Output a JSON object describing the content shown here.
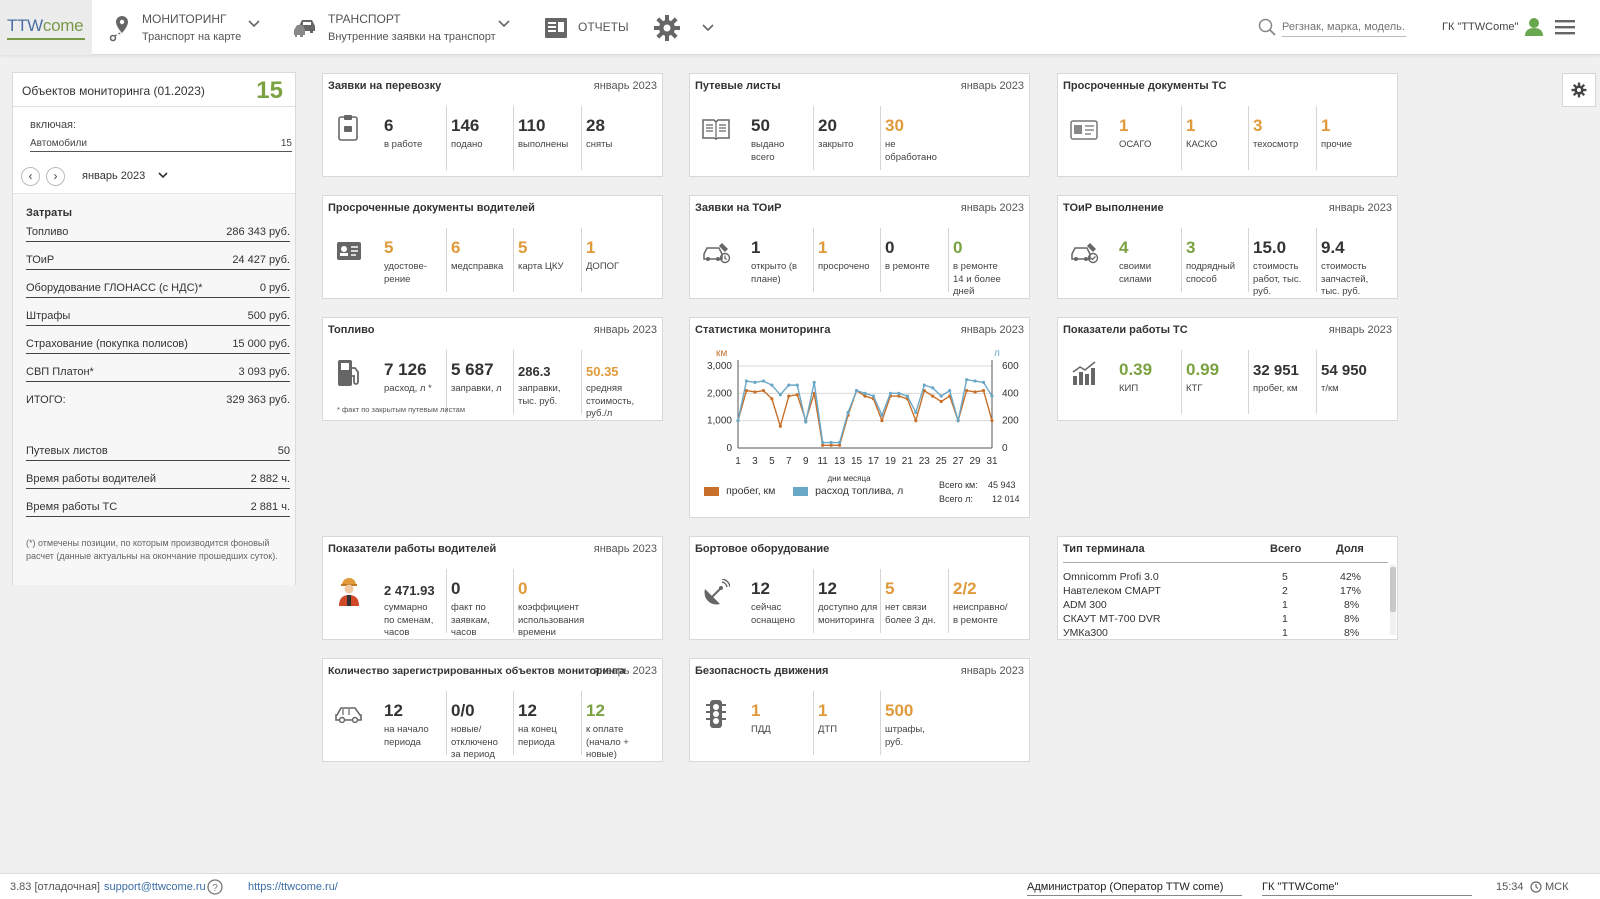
{
  "header": {
    "logo_tt": "TTW",
    "logo_rest": "come",
    "nav": [
      {
        "title": "МОНИТОРИНГ",
        "sub": "Транспорт на карте"
      },
      {
        "title": "ТРАНСПОРТ",
        "sub": "Внутренние заявки на транспорт"
      },
      {
        "title": "ОТЧЕТЫ",
        "sub": ""
      }
    ],
    "search_placeholder": "Регзнак, марка, модель...",
    "org": "ГК \"TTWCome\""
  },
  "left": {
    "title": "Объектов мониторинга (01.2023)",
    "count": "15",
    "including": "включая:",
    "auto_label": "Автомобили",
    "auto_value": "15",
    "period": "январь 2023",
    "costs_title": "Затраты",
    "costs": [
      {
        "label": "Топливо",
        "value": "286 343 руб."
      },
      {
        "label": "ТОиР",
        "value": "24 427 руб."
      },
      {
        "label": "Оборудование ГЛОНАСС (с НДС)*",
        "value": "0 руб."
      },
      {
        "label": "Штрафы",
        "value": "500 руб."
      },
      {
        "label": "Страхование (покупка полисов)",
        "value": "15 000 руб."
      },
      {
        "label": "СВП Платон*",
        "value": "3 093 руб."
      },
      {
        "label": "ИТОГО:",
        "value": "329 363 руб."
      }
    ],
    "extra": [
      {
        "label": "Путевых листов",
        "value": "50"
      },
      {
        "label": "Время работы водителей",
        "value": "2 882 ч."
      },
      {
        "label": "Время работы ТС",
        "value": "2 881 ч."
      }
    ],
    "note": "(*) отмечены позиции, по которым производится фоновый расчет (данные актуальны на окончание прошедших суток)."
  },
  "cards": {
    "c1": {
      "title": "Заявки на перевозку",
      "date": "январь 2023",
      "m": [
        {
          "v": "6",
          "l": "в работе"
        },
        {
          "v": "146",
          "l": "подано"
        },
        {
          "v": "110",
          "l": "выполнены"
        },
        {
          "v": "28",
          "l": "сняты"
        }
      ]
    },
    "c2": {
      "title": "Путевые листы",
      "date": "январь 2023",
      "m": [
        {
          "v": "50",
          "l": "выдано всего"
        },
        {
          "v": "20",
          "l": "закрыто"
        },
        {
          "v": "30",
          "l": "не обработано"
        }
      ]
    },
    "c3": {
      "title": "Просроченные документы ТС",
      "date": "",
      "m": [
        {
          "v": "1",
          "l": "ОСАГО"
        },
        {
          "v": "1",
          "l": "КАСКО"
        },
        {
          "v": "3",
          "l": "техосмотр"
        },
        {
          "v": "1",
          "l": "прочие"
        }
      ]
    },
    "c4": {
      "title": "Просроченные документы водителей",
      "date": "",
      "m": [
        {
          "v": "5",
          "l": "удостове-рение"
        },
        {
          "v": "6",
          "l": "медсправка"
        },
        {
          "v": "5",
          "l": "карта ЦКУ"
        },
        {
          "v": "1",
          "l": "ДОПОГ"
        }
      ]
    },
    "c5": {
      "title": "Заявки на ТОиР",
      "date": "январь 2023",
      "m": [
        {
          "v": "1",
          "l": "открыто (в плане)"
        },
        {
          "v": "1",
          "l": "просрочено"
        },
        {
          "v": "0",
          "l": "в ремонте"
        },
        {
          "v": "0",
          "l": "в ремонте 14 и более дней"
        }
      ]
    },
    "c6": {
      "title": "ТОиР выполнение",
      "date": "январь 2023",
      "m": [
        {
          "v": "4",
          "l": "своими силами"
        },
        {
          "v": "3",
          "l": "подрядный способ"
        },
        {
          "v": "15.0",
          "l": "стоимость работ, тыс. руб."
        },
        {
          "v": "9.4",
          "l": "стоимость запчастей, тыс. руб."
        }
      ]
    },
    "c7": {
      "title": "Топливо",
      "date": "январь 2023",
      "m": [
        {
          "v": "7 126",
          "l": "расход, л *"
        },
        {
          "v": "5 687",
          "l": "заправки, л"
        },
        {
          "v": "286.3",
          "l": "заправки, тыс. руб."
        },
        {
          "v": "50.35",
          "l": "средняя стоимость, руб./л"
        }
      ],
      "footnote": "* факт по закрытым путевым листам"
    },
    "c8": {
      "title": "Статистика мониторинга",
      "date": "январь 2023"
    },
    "c9": {
      "title": "Показатели работы ТС",
      "date": "январь 2023",
      "m": [
        {
          "v": "0.39",
          "l": "КИП"
        },
        {
          "v": "0.99",
          "l": "КТГ"
        },
        {
          "v": "32 951",
          "l": "пробег, км"
        },
        {
          "v": "54 950",
          "l": "т/км"
        }
      ]
    },
    "c10": {
      "title": "Показатели работы водителей",
      "date": "январь 2023",
      "m": [
        {
          "v": "2 471.93",
          "l": "суммарно по сменам, часов"
        },
        {
          "v": "0",
          "l": "факт по заявкам, часов"
        },
        {
          "v": "0",
          "l": "коэффициент использования времени"
        }
      ]
    },
    "c11": {
      "title": "Бортовое оборудование",
      "date": "",
      "m": [
        {
          "v": "12",
          "l": "сейчас оснащено"
        },
        {
          "v": "12",
          "l": "доступно для мониторинга"
        },
        {
          "v": "5",
          "l": "нет связи более 3 дн."
        },
        {
          "v": "2/2",
          "l": "неисправно/ в ремонте"
        }
      ]
    },
    "c12": {
      "title": "Количество зарегистрированных объектов мониторинга",
      "date": "январь 2023",
      "m": [
        {
          "v": "12",
          "l": "на начало периода"
        },
        {
          "v": "0/0",
          "l": "новые/ отключено за период"
        },
        {
          "v": "12",
          "l": "на конец периода"
        },
        {
          "v": "12",
          "l": "к оплате (начало + новые)"
        }
      ]
    },
    "c13": {
      "title": "Безопасность движения",
      "date": "январь 2023",
      "m": [
        {
          "v": "1",
          "l": "ПДД"
        },
        {
          "v": "1",
          "l": "ДТП"
        },
        {
          "v": "500",
          "l": "штрафы, руб."
        }
      ]
    }
  },
  "terminal": {
    "headers": [
      "Тип терминала",
      "Всего",
      "Доля"
    ],
    "rows": [
      [
        "Omnicomm Profi 3.0",
        "5",
        "42%"
      ],
      [
        "Навтелеком СМАРТ",
        "2",
        "17%"
      ],
      [
        "ADM 300",
        "1",
        "8%"
      ],
      [
        "СКАУТ МТ-700 DVR",
        "1",
        "8%"
      ],
      [
        "УМКа300",
        "1",
        "8%"
      ]
    ]
  },
  "chart_data": {
    "type": "line",
    "x": [
      1,
      2,
      3,
      4,
      5,
      6,
      7,
      8,
      9,
      10,
      11,
      12,
      13,
      14,
      15,
      16,
      17,
      18,
      19,
      20,
      21,
      22,
      23,
      24,
      25,
      26,
      27,
      28,
      29,
      30,
      31
    ],
    "x_ticks": [
      "1",
      "3",
      "5",
      "7",
      "9",
      "11",
      "13",
      "15",
      "17",
      "19",
      "21",
      "23",
      "25",
      "27",
      "29",
      "31"
    ],
    "xlabel": "дни месяца",
    "ylabel_left": "км",
    "ylabel_right": "л",
    "ylim_left": [
      0,
      3000
    ],
    "ylim_right": [
      0,
      600
    ],
    "yticks_left": [
      "0",
      "1,000",
      "2,000",
      "3,000"
    ],
    "yticks_right": [
      "0",
      "200",
      "400",
      "600"
    ],
    "series": [
      {
        "name": "пробег, км",
        "axis": "left",
        "color": "#c8702a",
        "values": [
          1000,
          2100,
          2050,
          2100,
          1800,
          800,
          1900,
          1950,
          1000,
          2000,
          100,
          100,
          100,
          1200,
          2100,
          1900,
          1800,
          1000,
          1900,
          1900,
          1800,
          1000,
          2100,
          1900,
          1700,
          1900,
          1000,
          2100,
          2050,
          2100,
          1000
        ]
      },
      {
        "name": "расход топлива, л",
        "axis": "right",
        "color": "#6aa8c8",
        "values": [
          200,
          490,
          480,
          490,
          460,
          390,
          460,
          460,
          190,
          480,
          40,
          40,
          40,
          260,
          420,
          400,
          380,
          240,
          400,
          400,
          380,
          260,
          460,
          440,
          380,
          420,
          200,
          500,
          490,
          480,
          380
        ]
      }
    ],
    "totals": [
      {
        "label": "Всего км:",
        "value": "45 943"
      },
      {
        "label": "Всего л:",
        "value": "12 014"
      }
    ]
  },
  "footer": {
    "version": "3.83 [отладочная]",
    "support": "support@ttwcome.ru",
    "url": "https://ttwcome.ru/",
    "user": "Администратор (Оператор TTW come)",
    "org": "ГК \"TTWCome\"",
    "time": "15:34",
    "tz": "МСК"
  }
}
